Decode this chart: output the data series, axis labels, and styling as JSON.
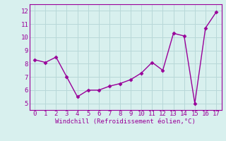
{
  "x": [
    0,
    1,
    2,
    3,
    4,
    5,
    6,
    7,
    8,
    9,
    10,
    11,
    12,
    13,
    14,
    15,
    16,
    17
  ],
  "y": [
    8.3,
    8.1,
    8.5,
    7.0,
    5.5,
    6.0,
    6.0,
    6.3,
    6.5,
    6.8,
    7.3,
    8.1,
    7.5,
    10.3,
    10.1,
    5.0,
    10.7,
    11.9
  ],
  "line_color": "#990099",
  "marker": "D",
  "marker_size": 2.5,
  "xlabel": "Windchill (Refroidissement éolien,°C)",
  "xlabel_color": "#990099",
  "xlabel_fontsize": 6.5,
  "xtick_labels": [
    "0",
    "1",
    "2",
    "3",
    "4",
    "5",
    "6",
    "7",
    "8",
    "9",
    "10",
    "11",
    "12",
    "13",
    "14",
    "15",
    "16",
    "17"
  ],
  "ytick_labels": [
    "5",
    "6",
    "7",
    "8",
    "9",
    "10",
    "11",
    "12"
  ],
  "ytick_vals": [
    5,
    6,
    7,
    8,
    9,
    10,
    11,
    12
  ],
  "ylim": [
    4.5,
    12.5
  ],
  "xlim": [
    -0.5,
    17.5
  ],
  "bg_color": "#d8f0ee",
  "grid_color": "#b8d8d8",
  "tick_color": "#990099",
  "tick_fontsize": 6.5,
  "line_width": 1.0,
  "spine_color": "#990099"
}
